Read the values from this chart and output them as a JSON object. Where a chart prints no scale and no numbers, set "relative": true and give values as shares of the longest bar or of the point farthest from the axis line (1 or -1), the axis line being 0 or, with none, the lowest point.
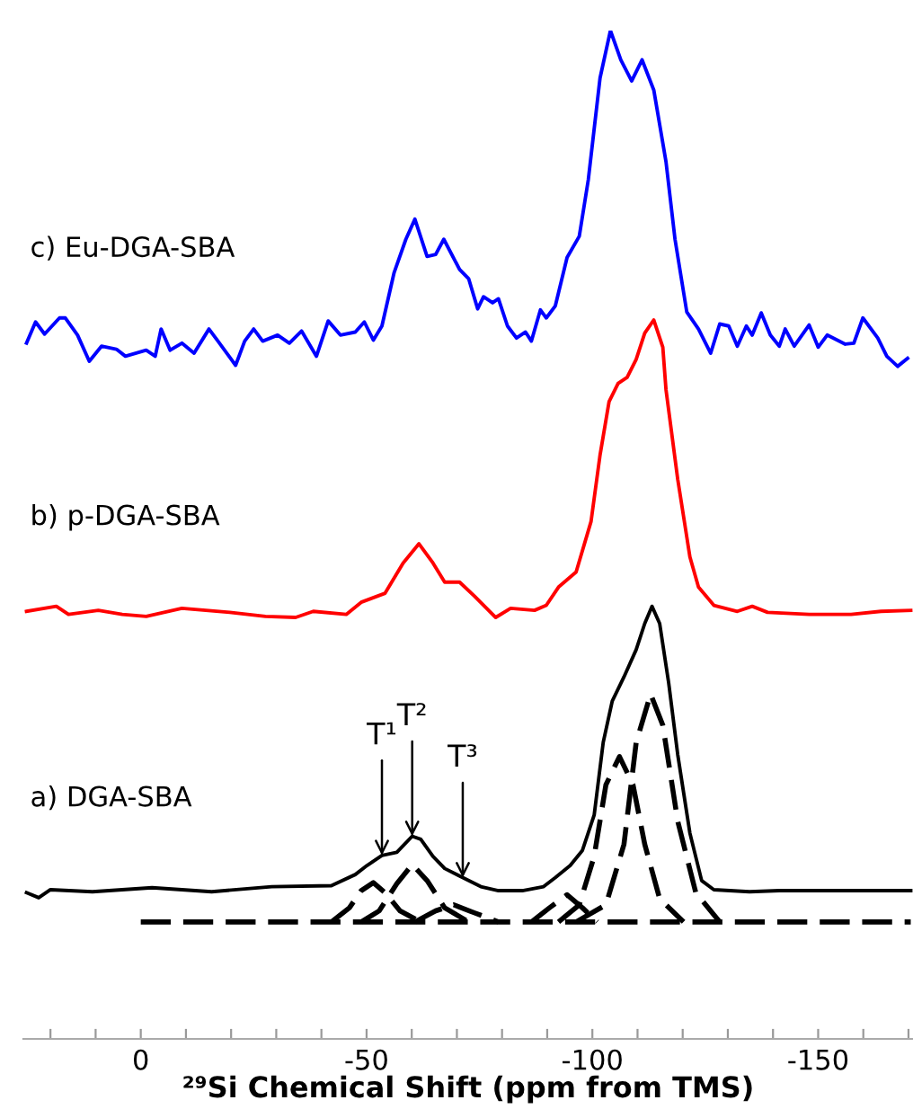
{
  "chart_data": {
    "type": "line",
    "relative": true,
    "xlabel": "²⁹Si Chemical Shift (ppm from TMS)",
    "xlim": [
      26,
      -171
    ],
    "xticks": [
      {
        "value": 20,
        "label": null
      },
      {
        "value": 10,
        "label": null
      },
      0,
      {
        "value": -10,
        "label": null
      },
      {
        "value": -20,
        "label": null
      },
      {
        "value": -30,
        "label": null
      },
      {
        "value": -40,
        "label": null
      },
      -50,
      {
        "value": -60,
        "label": null
      },
      {
        "value": -70,
        "label": null
      },
      {
        "value": -80,
        "label": null
      },
      {
        "value": -90,
        "label": null
      },
      -100,
      {
        "value": -110,
        "label": null
      },
      {
        "value": -120,
        "label": null
      },
      {
        "value": -130,
        "label": null
      },
      {
        "value": -140,
        "label": null
      },
      -150,
      {
        "value": -160,
        "label": null
      },
      {
        "value": -170,
        "label": null
      }
    ],
    "grid": false,
    "legend": false,
    "marker": "none",
    "series": [
      {
        "name": "c) Eu-DGA-SBA",
        "color": "#0000ff",
        "line_style": "solid",
        "x": [
          25.3,
          23.3,
          21.3,
          18.0,
          16.7,
          14.0,
          11.4,
          8.7,
          5.4,
          3.4,
          -1.2,
          -3.2,
          -4.5,
          -6.5,
          -9.1,
          -11.8,
          -15.1,
          -17.1,
          -21.0,
          -23.0,
          -25.0,
          -27.0,
          -30.3,
          -32.9,
          -35.6,
          -38.9,
          -41.5,
          -44.2,
          -47.5,
          -49.5,
          -51.5,
          -53.4,
          -56.1,
          -58.7,
          -60.7,
          -63.4,
          -65.3,
          -67.1,
          -70.6,
          -72.6,
          -74.6,
          -75.9,
          -77.9,
          -79.2,
          -81.2,
          -83.2,
          -85.2,
          -86.5,
          -88.5,
          -89.8,
          -91.8,
          -94.4,
          -97.1,
          -99.1,
          -101.7,
          -104.0,
          -106.3,
          -108.7,
          -111.0,
          -113.6,
          -116.3,
          -118.3,
          -120.9,
          -123.5,
          -126.2,
          -128.2,
          -130.2,
          -132.1,
          -134.1,
          -135.4,
          -137.4,
          -139.4,
          -141.4,
          -142.7,
          -144.7,
          -148.0,
          -150.0,
          -152.0,
          -156.0,
          -157.9,
          -159.9,
          -163.2,
          -165.2,
          -167.6,
          -169.8
        ],
        "values": [
          0.69,
          0.711,
          0.699,
          0.715,
          0.715,
          0.698,
          0.672,
          0.687,
          0.684,
          0.677,
          0.683,
          0.677,
          0.704,
          0.683,
          0.69,
          0.68,
          0.704,
          0.692,
          0.668,
          0.692,
          0.704,
          0.692,
          0.698,
          0.69,
          0.702,
          0.677,
          0.712,
          0.698,
          0.701,
          0.711,
          0.693,
          0.707,
          0.76,
          0.793,
          0.813,
          0.776,
          0.778,
          0.793,
          0.763,
          0.754,
          0.724,
          0.736,
          0.73,
          0.734,
          0.707,
          0.695,
          0.701,
          0.692,
          0.723,
          0.715,
          0.727,
          0.775,
          0.796,
          0.852,
          0.953,
          1.0,
          0.971,
          0.95,
          0.971,
          0.941,
          0.87,
          0.793,
          0.721,
          0.704,
          0.68,
          0.709,
          0.707,
          0.687,
          0.707,
          0.698,
          0.72,
          0.698,
          0.687,
          0.704,
          0.687,
          0.708,
          0.686,
          0.698,
          0.689,
          0.69,
          0.715,
          0.695,
          0.677,
          0.667,
          0.675
        ]
      },
      {
        "name": "b) p-DGA-SBA",
        "color": "#ff0000",
        "line_style": "solid",
        "x": [
          25.3,
          18.7,
          16.0,
          9.4,
          4.1,
          -1.2,
          -9.1,
          -19.7,
          -27.6,
          -34.3,
          -38.2,
          -45.5,
          -48.8,
          -54.1,
          -58.1,
          -61.6,
          -64.7,
          -67.3,
          -70.6,
          -73.9,
          -78.6,
          -81.9,
          -87.2,
          -89.8,
          -92.5,
          -96.4,
          -99.7,
          -101.7,
          -103.7,
          -105.7,
          -107.7,
          -109.7,
          -111.6,
          -113.6,
          -115.6,
          -116.3,
          -118.9,
          -121.6,
          -123.5,
          -126.9,
          -132.1,
          -135.4,
          -138.8,
          -148.0,
          -157.3,
          -163.9,
          -170.5
        ],
        "values": [
          0.424,
          0.429,
          0.421,
          0.425,
          0.421,
          0.419,
          0.427,
          0.423,
          0.419,
          0.418,
          0.424,
          0.421,
          0.433,
          0.442,
          0.472,
          0.491,
          0.472,
          0.453,
          0.453,
          0.439,
          0.418,
          0.427,
          0.425,
          0.43,
          0.448,
          0.463,
          0.513,
          0.579,
          0.632,
          0.65,
          0.656,
          0.674,
          0.7,
          0.713,
          0.686,
          0.644,
          0.555,
          0.478,
          0.448,
          0.43,
          0.424,
          0.429,
          0.423,
          0.421,
          0.421,
          0.424,
          0.425
        ]
      },
      {
        "name": "a) DGA-SBA",
        "color": "#000000",
        "line_style": "solid",
        "x": [
          25.3,
          22.6,
          20.0,
          10.7,
          -2.5,
          -15.7,
          -29.0,
          -42.2,
          -47.5,
          -50.1,
          -53.4,
          -56.7,
          -60.1,
          -62.0,
          -64.7,
          -67.3,
          -71.3,
          -75.3,
          -79.2,
          -84.5,
          -89.2,
          -91.8,
          -95.1,
          -97.8,
          -100.4,
          -102.4,
          -104.4,
          -107.0,
          -109.7,
          -111.6,
          -113.2,
          -114.9,
          -116.9,
          -118.9,
          -121.6,
          -124.2,
          -126.9,
          -134.8,
          -141.4,
          -154.6,
          -170.5
        ],
        "values": [
          0.145,
          0.14,
          0.148,
          0.146,
          0.15,
          0.146,
          0.151,
          0.152,
          0.163,
          0.172,
          0.182,
          0.185,
          0.201,
          0.198,
          0.181,
          0.169,
          0.16,
          0.151,
          0.147,
          0.147,
          0.151,
          0.16,
          0.172,
          0.187,
          0.222,
          0.294,
          0.335,
          0.359,
          0.386,
          0.412,
          0.429,
          0.412,
          0.353,
          0.282,
          0.204,
          0.157,
          0.148,
          0.146,
          0.147,
          0.147,
          0.147
        ]
      },
      {
        "color": "#000000",
        "line_style": "dashed",
        "x": [
          0.0,
          -170.5
        ],
        "values": [
          0.116,
          0.116
        ]
      },
      {
        "color": "#000000",
        "line_style": "dashed",
        "x": [
          -42.2,
          -46.2,
          -48.8,
          -51.5,
          -54.1,
          -57.4,
          -62.0
        ],
        "values": [
          0.116,
          0.13,
          0.147,
          0.155,
          0.145,
          0.127,
          0.116
        ]
      },
      {
        "color": "#000000",
        "line_style": "dashed",
        "x": [
          -48.8,
          -52.8,
          -56.7,
          -60.1,
          -63.4,
          -67.3,
          -72.6
        ],
        "values": [
          0.116,
          0.127,
          0.154,
          0.173,
          0.157,
          0.13,
          0.116
        ]
      },
      {
        "color": "#000000",
        "line_style": "dashed",
        "x": [
          -60.7,
          -65.3,
          -69.3,
          -73.9,
          -79.2
        ],
        "values": [
          0.116,
          0.127,
          0.133,
          0.125,
          0.116
        ]
      },
      {
        "color": "#000000",
        "line_style": "dashed",
        "x": [
          -86.5,
          -90.5,
          -94.4,
          -97.8,
          -101.1
        ],
        "values": [
          0.116,
          0.13,
          0.143,
          0.13,
          0.116
        ]
      },
      {
        "color": "#000000",
        "line_style": "dashed",
        "x": [
          -92.5,
          -97.1,
          -100.4,
          -103.0,
          -106.0,
          -109.0,
          -111.6,
          -114.9,
          -120.2
        ],
        "values": [
          0.116,
          0.133,
          0.181,
          0.252,
          0.28,
          0.252,
          0.193,
          0.139,
          0.116
        ]
      },
      {
        "color": "#000000",
        "line_style": "dashed",
        "x": [
          -96.4,
          -103.0,
          -107.0,
          -109.7,
          -112.9,
          -115.6,
          -118.9,
          -122.9,
          -128.2
        ],
        "values": [
          0.116,
          0.133,
          0.193,
          0.294,
          0.342,
          0.311,
          0.216,
          0.145,
          0.116
        ]
      }
    ],
    "annotations": [
      {
        "text": "T¹",
        "x": -53.4,
        "y": 0.182
      },
      {
        "text": "T²",
        "x": -60.1,
        "y": 0.201
      },
      {
        "text": "T³",
        "x": -71.3,
        "y": 0.16
      }
    ]
  }
}
